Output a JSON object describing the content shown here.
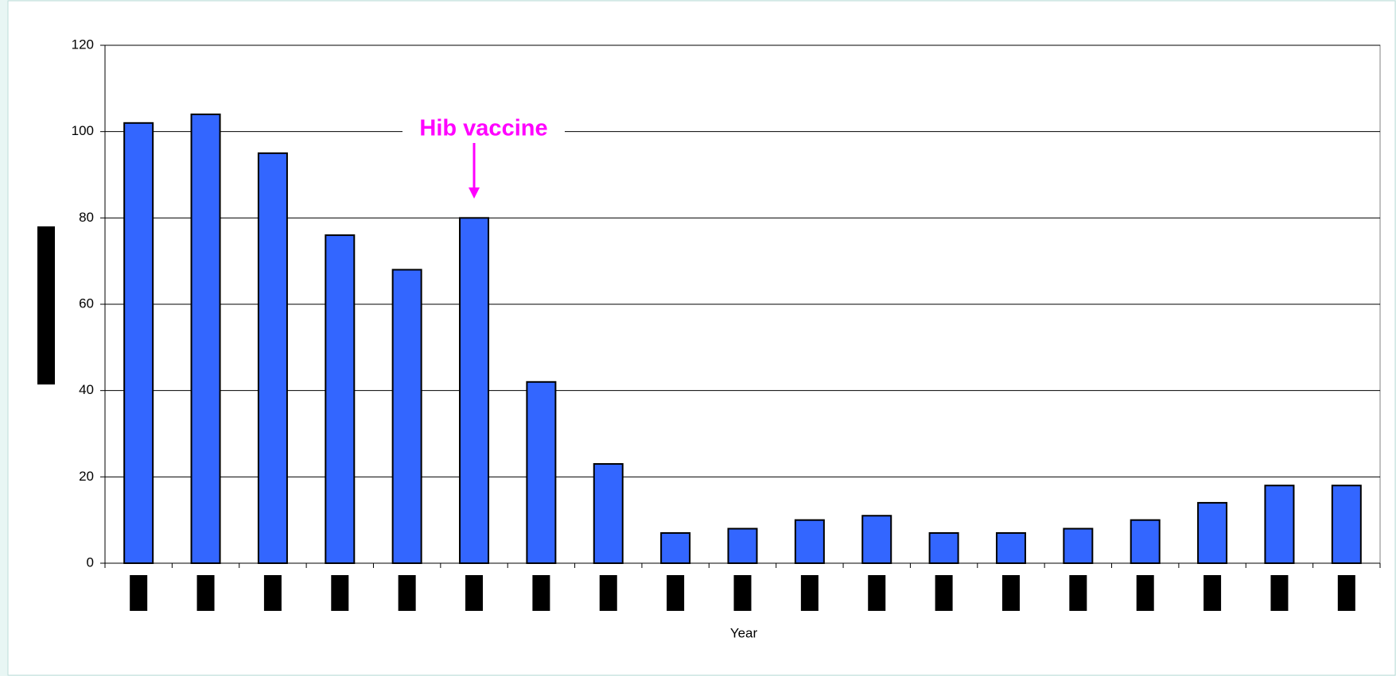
{
  "chart_data": {
    "type": "bar",
    "categories": [
      null,
      null,
      null,
      null,
      null,
      null,
      null,
      null,
      null,
      null,
      null,
      null,
      null,
      null,
      null,
      null,
      null,
      null,
      null
    ],
    "values": [
      102,
      104,
      95,
      76,
      68,
      80,
      42,
      23,
      7,
      8,
      10,
      11,
      7,
      7,
      8,
      10,
      14,
      18,
      18
    ],
    "color": "#3366ff",
    "xlabel": "Year",
    "annotation": "Hib vaccine",
    "annotation_color": "#ff00ff",
    "ylim": [
      0,
      120
    ],
    "yticks": [
      0,
      20,
      40,
      60,
      80,
      100,
      120
    ],
    "grid": true
  }
}
